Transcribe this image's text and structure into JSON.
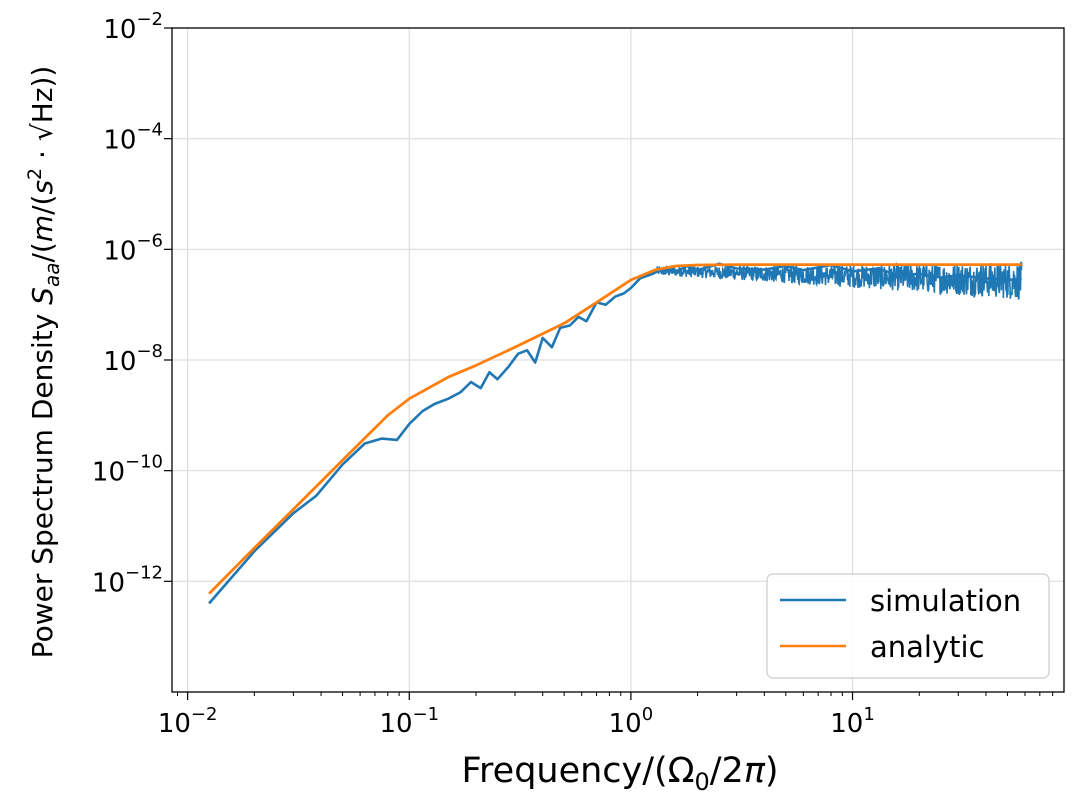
{
  "chart_data": {
    "type": "line",
    "xscale": "log",
    "yscale": "log",
    "xlim": [
      0.0085,
      90
    ],
    "ylim": [
      1e-14,
      0.01
    ],
    "xlabel": "Frequency/(Ω₀/2π)",
    "ylabel": "Power Spectrum Density S_aa/(m/(s²·√Hz))",
    "grid": true,
    "legend_position": "lower-right",
    "x_ticks": [
      {
        "value": 0.01,
        "base": "10",
        "exp": "−2"
      },
      {
        "value": 0.1,
        "base": "10",
        "exp": "−1"
      },
      {
        "value": 1,
        "base": "10",
        "exp": "0"
      },
      {
        "value": 10,
        "base": "10",
        "exp": "1"
      }
    ],
    "y_ticks": [
      {
        "value": 1e-12,
        "base": "10",
        "exp": "−12"
      },
      {
        "value": 1e-10,
        "base": "10",
        "exp": "−10"
      },
      {
        "value": 1e-08,
        "base": "10",
        "exp": "−8"
      },
      {
        "value": 1e-06,
        "base": "10",
        "exp": "−6"
      },
      {
        "value": 0.0001,
        "base": "10",
        "exp": "−4"
      },
      {
        "value": 0.01,
        "base": "10",
        "exp": "−2"
      }
    ],
    "series": [
      {
        "name": "simulation",
        "color": "#1f77b4",
        "description": "noisy estimate, f^4 rise then flat plateau near 3e-7 with growing scatter",
        "x": [
          0.0125,
          0.02,
          0.03,
          0.038,
          0.05,
          0.063,
          0.075,
          0.088,
          0.1,
          0.115,
          0.13,
          0.15,
          0.17,
          0.19,
          0.21,
          0.23,
          0.25,
          0.28,
          0.31,
          0.34,
          0.37,
          0.4,
          0.44,
          0.48,
          0.53,
          0.58,
          0.63,
          0.7,
          0.77,
          0.85,
          0.93,
          1.0,
          1.1,
          1.25,
          1.4,
          1.6,
          1.8,
          2.0,
          2.5,
          3,
          4,
          5,
          6,
          8,
          10,
          13,
          16,
          20,
          25,
          30,
          40,
          50,
          58
        ],
        "y": [
          4e-13,
          3.5e-12,
          1.7e-11,
          3.5e-11,
          1.3e-10,
          3.1e-10,
          3.8e-10,
          3.6e-10,
          7e-10,
          1.2e-09,
          1.6e-09,
          2e-09,
          2.6e-09,
          4e-09,
          3.1e-09,
          6e-09,
          4.5e-09,
          7.5e-09,
          1.3e-08,
          1.5e-08,
          9e-09,
          2.5e-08,
          1.7e-08,
          3.8e-08,
          4.2e-08,
          6e-08,
          5e-08,
          1.1e-07,
          1e-07,
          1.4e-07,
          1.6e-07,
          2e-07,
          3e-07,
          3.6e-07,
          4.5e-07,
          4e-07,
          5e-07,
          4.2e-07,
          5.5e-07,
          4.5e-07,
          4.3e-07,
          5e-07,
          4.2e-07,
          5.2e-07,
          4e-07,
          4.5e-07,
          3.4e-07,
          3.6e-07,
          3.1e-07,
          3.4e-07,
          3e-07,
          2.8e-07,
          2.9e-07
        ],
        "noise_band": {
          "from": 1.3,
          "to": 58,
          "low_start": 2.4e-07,
          "low_end": 1.2e-07,
          "high_start": 7e-07,
          "high_end": 6e-07
        }
      },
      {
        "name": "analytic",
        "color": "#ff7f0e",
        "description": "smooth curve S = A (f/f0)^4 / (1 + (f/f0)^4)",
        "x": [
          0.0125,
          0.02,
          0.03,
          0.05,
          0.08,
          0.1,
          0.15,
          0.2,
          0.3,
          0.5,
          0.7,
          1.0,
          1.3,
          1.6,
          2.0,
          3,
          5,
          10,
          20,
          40,
          58
        ],
        "y": [
          6e-13,
          4e-12,
          2e-11,
          1.55e-10,
          1e-09,
          2e-09,
          4.9e-09,
          8e-09,
          1.7e-08,
          4.6e-08,
          1.1e-07,
          2.8e-07,
          4.3e-07,
          5e-07,
          5.2e-07,
          5.3e-07,
          5.3e-07,
          5.3e-07,
          5.3e-07,
          5.3e-07,
          5.3e-07
        ]
      }
    ]
  }
}
